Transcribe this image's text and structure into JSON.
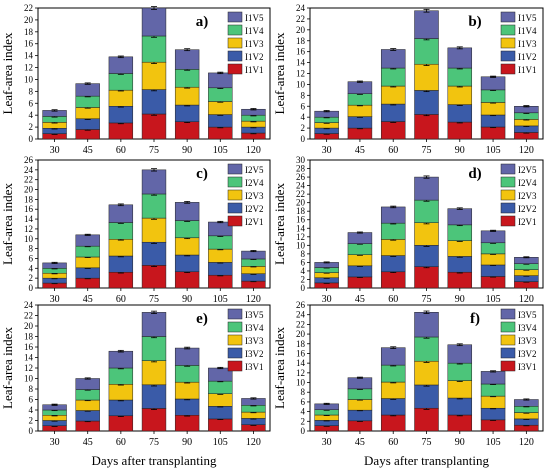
{
  "figure": {
    "ylabel": "Leaf-area index",
    "xlabel": "Days after transplanting"
  },
  "palette": {
    "V1": "#c8161d",
    "V2": "#3a5ba8",
    "V3": "#f2c40f",
    "V4": "#4cc57a",
    "V5": "#6266a8"
  },
  "chart_data": [
    {
      "type": "bar",
      "stacked": true,
      "panel": "a)",
      "categories": [
        "30",
        "45",
        "60",
        "75",
        "90",
        "105",
        "120"
      ],
      "ylim": [
        0,
        22
      ],
      "yticks": [
        0,
        2,
        4,
        6,
        8,
        10,
        12,
        14,
        16,
        18,
        20,
        22
      ],
      "legend_position": "top-right",
      "series": [
        {
          "name": "I1V1",
          "values": [
            0.9,
            1.6,
            2.7,
            4.2,
            2.9,
            2.0,
            1.0
          ]
        },
        {
          "name": "I1V2",
          "values": [
            0.9,
            1.8,
            2.8,
            4.1,
            2.8,
            2.1,
            1.0
          ]
        },
        {
          "name": "I1V3",
          "values": [
            1.0,
            1.9,
            2.7,
            4.6,
            3.0,
            2.2,
            1.0
          ]
        },
        {
          "name": "I1V4",
          "values": [
            1.0,
            1.9,
            2.8,
            4.4,
            3.0,
            2.3,
            1.0
          ]
        },
        {
          "name": "I1V5",
          "values": [
            1.0,
            2.1,
            2.8,
            4.7,
            3.3,
            2.5,
            1.0
          ]
        }
      ]
    },
    {
      "type": "bar",
      "stacked": true,
      "panel": "b)",
      "categories": [
        "30",
        "45",
        "60",
        "75",
        "90",
        "105",
        "120"
      ],
      "ylim": [
        0,
        24
      ],
      "yticks": [
        0,
        2,
        4,
        6,
        8,
        10,
        12,
        14,
        16,
        18,
        20,
        22,
        24
      ],
      "legend_position": "top-right",
      "series": [
        {
          "name": "I1V1",
          "values": [
            1.0,
            2.0,
            3.2,
            4.5,
            3.1,
            2.2,
            1.2
          ]
        },
        {
          "name": "I1V2",
          "values": [
            1.0,
            2.1,
            3.2,
            4.4,
            3.2,
            2.2,
            1.2
          ]
        },
        {
          "name": "I1V3",
          "values": [
            1.0,
            2.1,
            3.3,
            4.8,
            3.4,
            2.3,
            1.2
          ]
        },
        {
          "name": "I1V4",
          "values": [
            1.0,
            2.1,
            3.3,
            4.7,
            3.3,
            2.3,
            1.2
          ]
        },
        {
          "name": "I1V5",
          "values": [
            1.1,
            2.2,
            3.4,
            5.1,
            3.7,
            2.4,
            1.2
          ]
        }
      ]
    },
    {
      "type": "bar",
      "stacked": true,
      "panel": "c)",
      "categories": [
        "30",
        "45",
        "60",
        "75",
        "90",
        "105",
        "120"
      ],
      "ylim": [
        0,
        26
      ],
      "yticks": [
        0,
        2,
        4,
        6,
        8,
        10,
        12,
        14,
        16,
        18,
        20,
        22,
        24,
        26
      ],
      "legend_position": "top-right",
      "series": [
        {
          "name": "I2V1",
          "values": [
            1.0,
            2.0,
            3.2,
            4.6,
            3.3,
            2.6,
            1.4
          ]
        },
        {
          "name": "I2V2",
          "values": [
            1.0,
            2.1,
            3.3,
            4.7,
            3.4,
            2.6,
            1.5
          ]
        },
        {
          "name": "I2V3",
          "values": [
            1.0,
            2.2,
            3.4,
            4.9,
            3.5,
            2.7,
            1.5
          ]
        },
        {
          "name": "I2V4",
          "values": [
            1.0,
            2.2,
            3.4,
            4.9,
            3.5,
            2.7,
            1.5
          ]
        },
        {
          "name": "I2V5",
          "values": [
            1.1,
            2.3,
            3.6,
            4.9,
            3.7,
            2.8,
            1.6
          ]
        }
      ]
    },
    {
      "type": "bar",
      "stacked": true,
      "panel": "d)",
      "categories": [
        "30",
        "45",
        "60",
        "75",
        "90",
        "105",
        "120"
      ],
      "ylim": [
        0,
        30
      ],
      "yticks": [
        0,
        2,
        4,
        6,
        8,
        10,
        12,
        14,
        16,
        18,
        20,
        22,
        24,
        26,
        28,
        30
      ],
      "legend_position": "top-right",
      "series": [
        {
          "name": "I2V1",
          "values": [
            1.2,
            2.6,
            3.8,
            5.0,
            3.7,
            2.7,
            1.5
          ]
        },
        {
          "name": "I2V2",
          "values": [
            1.2,
            2.6,
            3.8,
            5.0,
            3.7,
            2.7,
            1.4
          ]
        },
        {
          "name": "I2V3",
          "values": [
            1.2,
            2.6,
            3.8,
            5.3,
            3.7,
            2.6,
            1.4
          ]
        },
        {
          "name": "I2V4",
          "values": [
            1.2,
            2.6,
            3.8,
            5.3,
            3.7,
            2.6,
            1.4
          ]
        },
        {
          "name": "I2V5",
          "values": [
            1.2,
            2.6,
            3.8,
            5.4,
            3.8,
            2.8,
            1.5
          ]
        }
      ]
    },
    {
      "type": "bar",
      "stacked": true,
      "panel": "e)",
      "categories": [
        "30",
        "45",
        "60",
        "75",
        "90",
        "105",
        "120"
      ],
      "ylim": [
        0,
        24
      ],
      "yticks": [
        0,
        2,
        4,
        6,
        8,
        10,
        12,
        14,
        16,
        18,
        20,
        22,
        24
      ],
      "legend_position": "top-right",
      "series": [
        {
          "name": "I3V1",
          "values": [
            1.0,
            1.9,
            2.9,
            4.3,
            3.0,
            2.3,
            1.2
          ]
        },
        {
          "name": "I3V2",
          "values": [
            1.0,
            2.0,
            3.0,
            4.5,
            3.1,
            2.4,
            1.2
          ]
        },
        {
          "name": "I3V3",
          "values": [
            1.0,
            2.0,
            3.0,
            4.6,
            3.2,
            2.4,
            1.2
          ]
        },
        {
          "name": "I3V4",
          "values": [
            1.0,
            2.0,
            3.1,
            4.6,
            3.2,
            2.4,
            1.3
          ]
        },
        {
          "name": "I3V5",
          "values": [
            1.0,
            2.1,
            3.2,
            4.6,
            3.3,
            2.5,
            1.3
          ]
        }
      ]
    },
    {
      "type": "bar",
      "stacked": true,
      "panel": "f)",
      "categories": [
        "30",
        "45",
        "60",
        "75",
        "90",
        "105",
        "120"
      ],
      "ylim": [
        0,
        26
      ],
      "yticks": [
        0,
        2,
        4,
        6,
        8,
        10,
        12,
        14,
        16,
        18,
        20,
        22,
        24,
        26
      ],
      "legend_position": "top-right",
      "series": [
        {
          "name": "I3V1",
          "values": [
            1.1,
            2.1,
            3.3,
            4.7,
            3.3,
            2.3,
            1.2
          ]
        },
        {
          "name": "I3V2",
          "values": [
            1.1,
            2.2,
            3.4,
            4.8,
            3.5,
            2.4,
            1.3
          ]
        },
        {
          "name": "I3V3",
          "values": [
            1.1,
            2.2,
            3.4,
            4.9,
            3.6,
            2.5,
            1.3
          ]
        },
        {
          "name": "I3V4",
          "values": [
            1.1,
            2.2,
            3.5,
            5.0,
            3.6,
            2.5,
            1.3
          ]
        },
        {
          "name": "I3V5",
          "values": [
            1.2,
            2.3,
            3.6,
            5.1,
            3.8,
            2.6,
            1.4
          ]
        }
      ]
    }
  ]
}
